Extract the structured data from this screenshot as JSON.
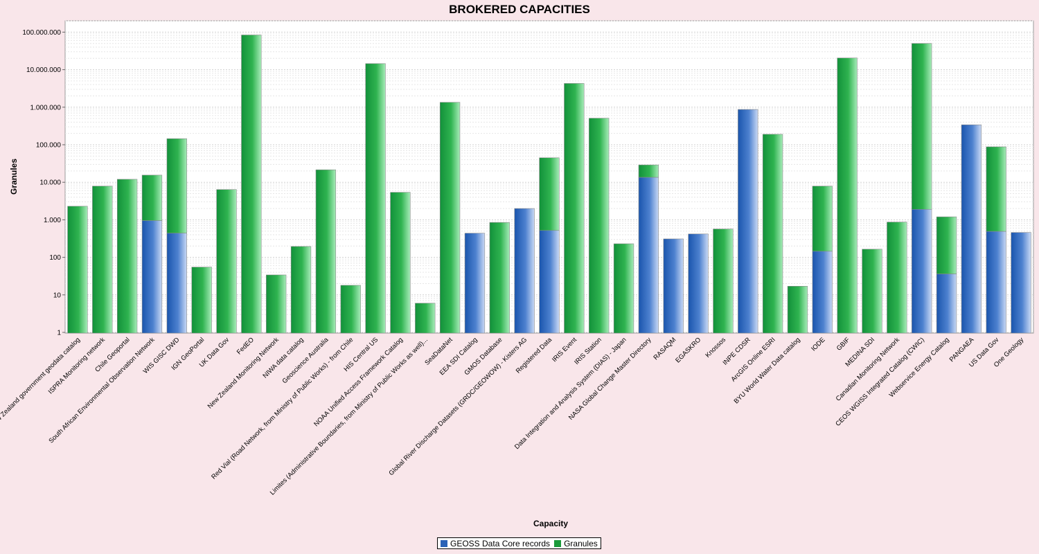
{
  "chart_data": {
    "type": "bar",
    "stacked": true,
    "title": "BROKERED CAPACITIES",
    "xlabel": "Capacity",
    "ylabel": "Granules",
    "yscale": "log",
    "ylim": [
      1,
      150000000
    ],
    "yticks": [
      1,
      10,
      100,
      1000,
      10000,
      100000,
      1000000,
      10000000,
      100000000
    ],
    "ytick_labels": [
      "1",
      "10",
      "100",
      "1.000",
      "10.000",
      "100.000",
      "1.000.000",
      "10.000.000",
      "100.000.000"
    ],
    "grid": true,
    "legend": "bottom-center",
    "colors": {
      "geoss": "#2a62b6",
      "granules": "#1a9a3a",
      "background": "#f9e6ea",
      "plot": "#ffffff"
    },
    "categories": [
      "New Zealand government geodata catalog",
      "ISPRA Monitoring network",
      "Chile Geoportal",
      "South African Environmental Observation Network",
      "WIS GISC DWD",
      "IGN GeoPortal",
      "UK Data Gov",
      "FedEO",
      "New Zealand Monitoring Network",
      "NIWA data catalog",
      "Geoscience Australia",
      "Red Vial (Road Network, from Ministry of Public Works) - from Chile",
      "HIS Central US",
      "NOAA Unified Access Framework Catalog",
      "Limites (Administrative Boundaries, from Ministry of Public Works as well)...",
      "SeaDataNet",
      "EEA SDI Catalog",
      "GMOS Database",
      "Global River Discharge Datasets (GRDC/GEOWOW) - Kisters AG",
      "Registered Data",
      "IRIS Event",
      "IRIS Station",
      "Data Integration and Analysis System (DIAS) - Japan",
      "NASA Global Change Master Directory",
      "RASAQM",
      "EGASKRO",
      "Knossos",
      "INPE CDSR",
      "ArcGIS Online ESRI",
      "BYU World Water Data catalog",
      "IODE",
      "GBIF",
      "MEDINA SDI",
      "Canadian Monitoring Network",
      "CEOS WGISS Integrated Catalog (CWIC)",
      "Webservice Energy Catalog",
      "PANGAEA",
      "US Data Gov",
      "One Geology"
    ],
    "series": [
      {
        "name": "GEOSS Data Core records",
        "values": [
          0,
          0,
          0,
          950,
          440,
          0,
          0,
          0,
          0,
          0,
          0,
          0,
          0,
          0,
          0,
          0,
          440,
          0,
          2000,
          520,
          0,
          0,
          0,
          13500,
          310,
          420,
          0,
          870000,
          0,
          0,
          145,
          0,
          0,
          0,
          1900,
          36,
          340000,
          490,
          460
        ]
      },
      {
        "name": "Granules",
        "values": [
          2300,
          7900,
          12000,
          15500,
          145000,
          55,
          6400,
          84000000,
          34,
          195,
          21500,
          18,
          14500000,
          5400,
          6,
          1350000,
          0,
          850,
          0,
          45000,
          4300000,
          510000,
          230,
          29000,
          0,
          0,
          570,
          0,
          190000,
          17,
          7900,
          20500000,
          165,
          870,
          50000000,
          1200,
          0,
          88000,
          0
        ]
      }
    ]
  },
  "legend": {
    "items": [
      {
        "label": "GEOSS Data Core records",
        "color": "#2a62b6"
      },
      {
        "label": "Granules",
        "color": "#1a9a3a"
      }
    ]
  }
}
